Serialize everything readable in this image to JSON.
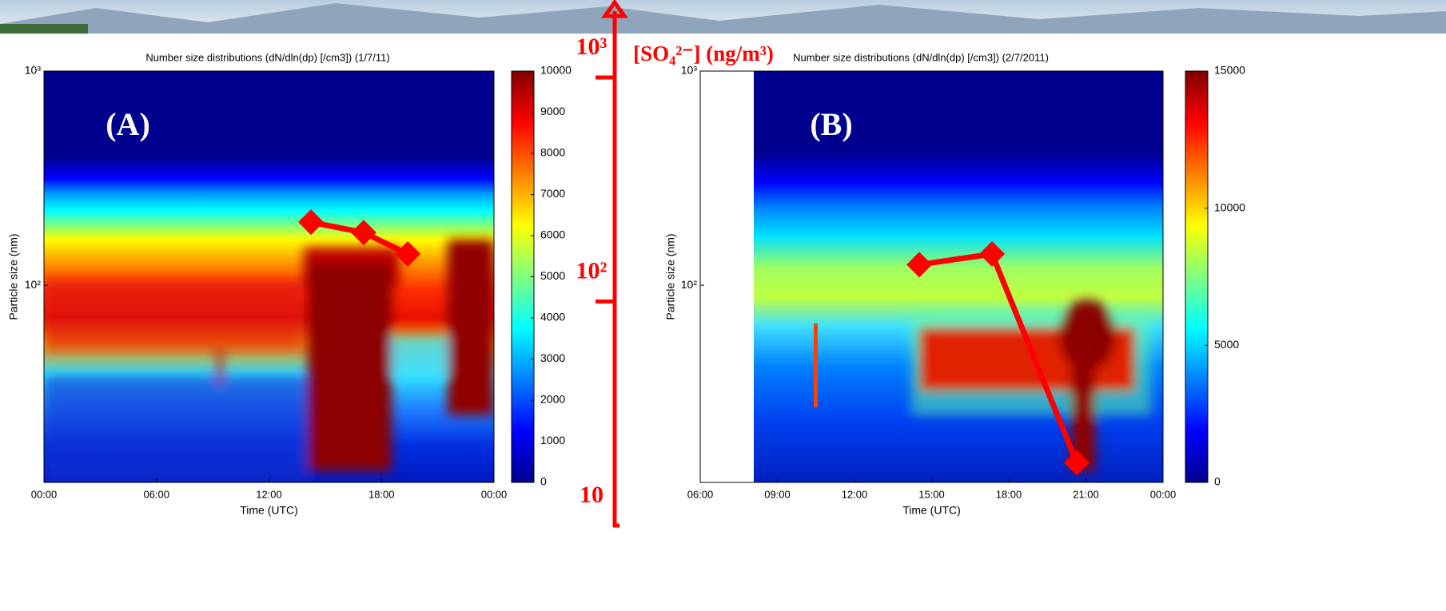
{
  "sulfate_axis": {
    "label": "[SO₄²⁻] (ng/m³)",
    "color": "#ff0000",
    "log_scale": true,
    "ylim": [
      10,
      1000
    ],
    "yticks": [
      10,
      {
        "value": 100,
        "label": "10²"
      },
      {
        "value": 1000,
        "label": "10³"
      }
    ]
  },
  "chart_data": [
    {
      "type": "heatmap",
      "panel_label": "(A)",
      "title": "Number size distributions (dN/dln(dp) [/cm3]) (1/7/11)",
      "x_label": "Time (UTC)",
      "y_label": "Particle size (nm)",
      "xlim": [
        0,
        24
      ],
      "xticks": [
        {
          "value": 0,
          "label": "00:00"
        },
        {
          "value": 6,
          "label": "06:00"
        },
        {
          "value": 12,
          "label": "12:00"
        },
        {
          "value": 18,
          "label": "18:00"
        },
        {
          "value": 24,
          "label": "00:00"
        }
      ],
      "ylim": [
        12,
        1000
      ],
      "log_y": true,
      "yticks": [
        {
          "value": 100,
          "label": "10²"
        },
        {
          "value": 1000,
          "label": "10³"
        }
      ],
      "colorbar": {
        "clim": [
          0,
          10000
        ],
        "ticks": [
          0,
          1000,
          2000,
          3000,
          4000,
          5000,
          6000,
          7000,
          8000,
          9000,
          10000
        ]
      },
      "sulfate": {
        "color": "#ff0000",
        "x": [
          14.24,
          17.05,
          19.4
        ],
        "values": [
          226,
          203,
          163
        ]
      }
    },
    {
      "type": "heatmap",
      "panel_label": "(B)",
      "title": "Number size distributions (dN/dln(dp) [/cm3]) (2/7/2011)",
      "x_label": "Time (UTC)",
      "y_label": "Particle size (nm)",
      "xlim": [
        6,
        24
      ],
      "xticks": [
        {
          "value": 6,
          "label": "06:00"
        },
        {
          "value": 9,
          "label": "09:00"
        },
        {
          "value": 12,
          "label": "12:00"
        },
        {
          "value": 15,
          "label": "15:00"
        },
        {
          "value": 18,
          "label": "18:00"
        },
        {
          "value": 21,
          "label": "21:00"
        },
        {
          "value": 24,
          "label": "00:00"
        }
      ],
      "ylim": [
        12,
        1000
      ],
      "log_y": true,
      "yticks": [
        {
          "value": 100,
          "label": "10²"
        },
        {
          "value": 1000,
          "label": "10³"
        }
      ],
      "colorbar": {
        "clim": [
          0,
          15000
        ],
        "ticks": [
          0,
          5000,
          10000,
          15000
        ]
      },
      "sulfate": {
        "color": "#ff0000",
        "x": [
          14.52,
          17.35,
          20.64
        ],
        "values": [
          146,
          163,
          19.1
        ]
      }
    }
  ]
}
